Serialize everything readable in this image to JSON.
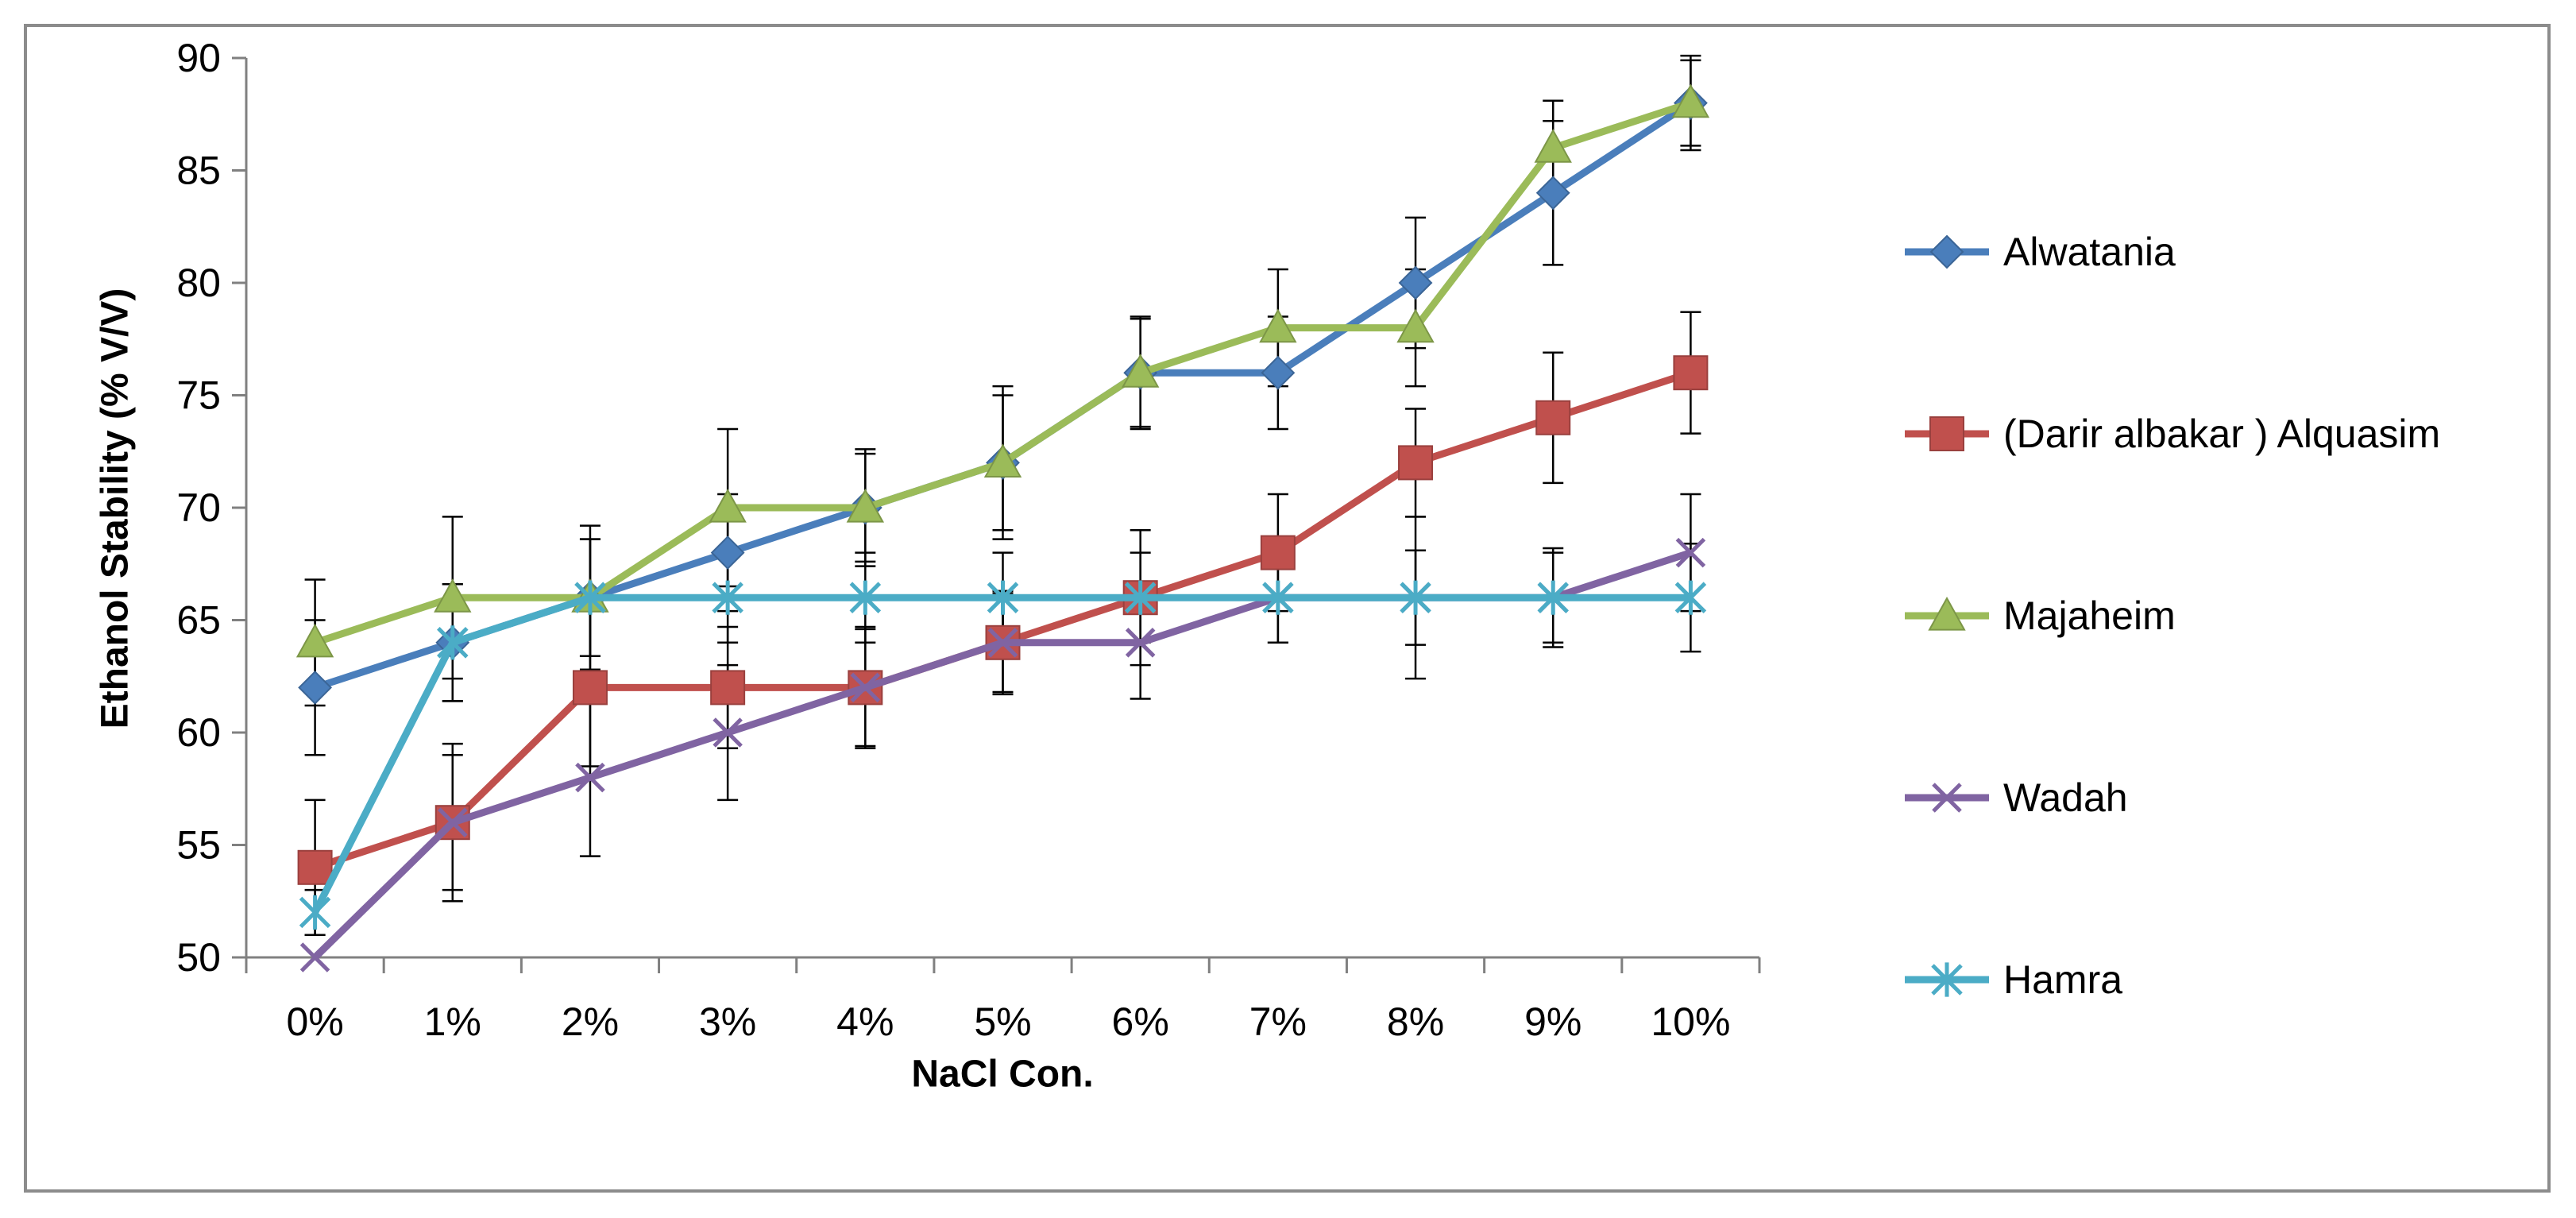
{
  "chart_data": {
    "type": "line",
    "title": "",
    "xlabel": "NaCl Con.",
    "ylabel": "Ethanol Stability (% V/V)",
    "ylim": [
      50,
      90
    ],
    "y_ticks": [
      50,
      55,
      60,
      65,
      70,
      75,
      80,
      85,
      90
    ],
    "categories": [
      "0%",
      "1%",
      "2%",
      "3%",
      "4%",
      "5%",
      "6%",
      "7%",
      "8%",
      "9%",
      "10%"
    ],
    "grid": false,
    "legend_position": "right",
    "series": [
      {
        "name": "Alwatania",
        "marker": "diamond",
        "color": "#4a7ebb",
        "values": [
          62,
          64,
          66,
          68,
          70,
          72,
          76,
          76,
          80,
          84,
          88
        ],
        "error": [
          3,
          2.6,
          2.6,
          2.6,
          2.6,
          3,
          2.5,
          2.5,
          2.9,
          3.2,
          1.9
        ]
      },
      {
        "name": "(Darir albakar ) Alquasim",
        "marker": "square",
        "color": "#c0504d",
        "values": [
          54,
          56,
          62,
          62,
          62,
          64,
          66,
          68,
          72,
          74,
          76
        ],
        "error": [
          3,
          3.5,
          3.5,
          2.7,
          2.7,
          2.2,
          3,
          2.6,
          2.4,
          2.9,
          2.7
        ]
      },
      {
        "name": "Majaheim",
        "marker": "triangle",
        "color": "#9bbb59",
        "values": [
          64,
          66,
          66,
          70,
          70,
          72,
          76,
          78,
          78,
          86,
          88
        ],
        "error": [
          2.8,
          3.6,
          3.2,
          3.5,
          2.4,
          3.4,
          2.4,
          2.6,
          2.6,
          2.1,
          2.1
        ]
      },
      {
        "name": "Wadah",
        "marker": "x",
        "color": "#8064a2",
        "values": [
          50,
          56,
          58,
          60,
          62,
          64,
          64,
          66,
          66,
          66,
          68
        ],
        "error": [
          0,
          3,
          3.5,
          3,
          2.6,
          2.3,
          2.5,
          2,
          2.1,
          2.2,
          2.6
        ]
      },
      {
        "name": "Hamra",
        "marker": "star",
        "color": "#4bacc6",
        "values": [
          52,
          64,
          66,
          66,
          66,
          66,
          66,
          66,
          66,
          66,
          66
        ],
        "error": [
          1,
          2.6,
          2.6,
          2,
          2,
          2,
          2,
          2,
          3.6,
          2,
          2.4
        ]
      }
    ]
  }
}
